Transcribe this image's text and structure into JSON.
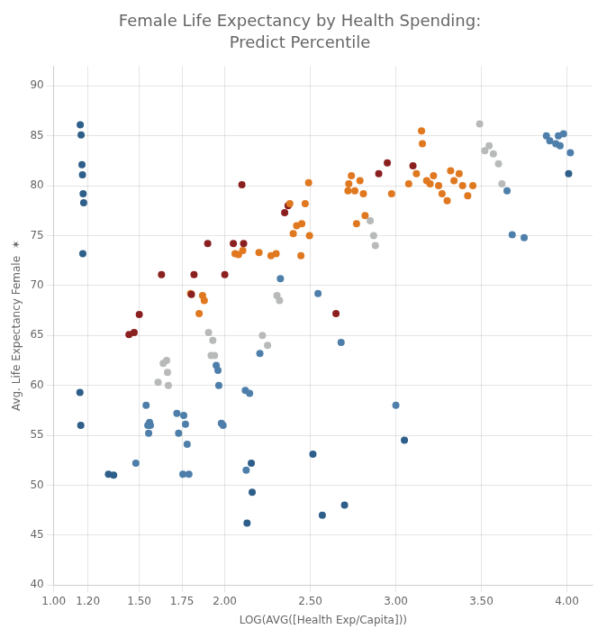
{
  "chart_data": {
    "type": "scatter",
    "title": "Female Life Expectancy by Health Spending:",
    "subtitle": "Predict Percentile",
    "xlabel": "LOG(AVG([Health Exp/Capita]))",
    "ylabel": "Avg. Life Expectancy Female  ✶",
    "xlim": [
      1.0,
      4.15
    ],
    "ylim": [
      40,
      92
    ],
    "xticks": [
      {
        "value": 1,
        "label": "1.00"
      },
      {
        "value": 1.2,
        "label": "1.20"
      },
      {
        "value": 1.5,
        "label": "1.50"
      },
      {
        "value": 1.75,
        "label": "1.75"
      },
      {
        "value": 2,
        "label": "2.00"
      },
      {
        "value": 2.5,
        "label": "2.50"
      },
      {
        "value": 3,
        "label": "3.00"
      },
      {
        "value": 3.5,
        "label": "3.50"
      },
      {
        "value": 4,
        "label": "4.00"
      }
    ],
    "yticks": [
      40,
      45,
      50,
      55,
      60,
      65,
      70,
      75,
      80,
      85,
      90
    ],
    "grid": true,
    "x": [
      1.155,
      1.16,
      1.165,
      1.168,
      1.172,
      1.175,
      1.153,
      1.158,
      1.17,
      1.32,
      1.35,
      1.44,
      1.47,
      1.5,
      1.48,
      1.54,
      1.55,
      1.555,
      1.56,
      1.565,
      1.63,
      1.61,
      1.64,
      1.66,
      1.665,
      1.67,
      1.72,
      1.73,
      1.755,
      1.76,
      1.77,
      1.78,
      1.79,
      1.8,
      1.805,
      1.82,
      1.85,
      1.87,
      1.88,
      1.9,
      1.905,
      1.92,
      1.93,
      1.94,
      1.95,
      1.96,
      1.965,
      1.98,
      1.99,
      2.0,
      2.05,
      2.06,
      2.08,
      2.1,
      2.105,
      2.11,
      2.12,
      2.125,
      2.13,
      2.145,
      2.155,
      2.16,
      2.2,
      2.205,
      2.22,
      2.25,
      2.27,
      2.3,
      2.305,
      2.32,
      2.325,
      2.35,
      2.37,
      2.38,
      2.4,
      2.42,
      2.445,
      2.45,
      2.47,
      2.49,
      2.495,
      2.515,
      2.545,
      2.57,
      2.65,
      2.68,
      2.7,
      2.72,
      2.725,
      2.74,
      2.76,
      2.77,
      2.79,
      2.81,
      2.82,
      2.85,
      2.87,
      2.88,
      2.9,
      2.95,
      2.975,
      3.0,
      3.05,
      3.075,
      3.1,
      3.12,
      3.15,
      3.155,
      3.18,
      3.2,
      3.22,
      3.25,
      3.27,
      3.3,
      3.32,
      3.34,
      3.37,
      3.39,
      3.42,
      3.45,
      3.49,
      3.52,
      3.545,
      3.57,
      3.6,
      3.62,
      3.65,
      3.68,
      3.75,
      3.88,
      3.9,
      3.935,
      3.95,
      3.96,
      3.98,
      4.01,
      4.02
    ],
    "values": [
      86.1,
      85.1,
      82.1,
      81.1,
      79.2,
      78.3,
      59.3,
      56.0,
      73.2,
      51.1,
      51.0,
      65.1,
      65.3,
      67.1,
      52.2,
      58.0,
      56.0,
      55.2,
      56.3,
      56.0,
      71.1,
      60.3,
      62.2,
      62.5,
      61.3,
      60.0,
      57.2,
      55.2,
      51.1,
      57.0,
      56.1,
      54.1,
      51.1,
      69.2,
      69.1,
      71.1,
      67.2,
      69.0,
      68.5,
      74.2,
      65.3,
      63.0,
      64.5,
      63.0,
      62.0,
      61.5,
      60.0,
      56.2,
      56.0,
      71.1,
      74.2,
      73.2,
      73.1,
      80.1,
      73.5,
      74.2,
      59.5,
      51.5,
      46.2,
      59.2,
      52.2,
      49.3,
      73.3,
      63.2,
      65.0,
      64.0,
      73.0,
      73.2,
      69.0,
      68.5,
      70.7,
      77.3,
      78.0,
      78.2,
      75.2,
      76.0,
      73.0,
      76.2,
      78.2,
      80.3,
      75.0,
      53.1,
      69.2,
      47.0,
      67.2,
      64.3,
      48.0,
      79.5,
      80.2,
      81.0,
      79.5,
      76.2,
      80.5,
      79.2,
      77.0,
      76.5,
      75.0,
      74.0,
      81.2,
      82.3,
      79.2,
      58.0,
      54.5,
      80.2,
      82.0,
      81.2,
      85.5,
      84.2,
      80.5,
      80.2,
      81.0,
      80.0,
      79.2,
      78.5,
      81.5,
      80.5,
      81.2,
      80.0,
      79.0,
      80.0,
      86.2,
      83.5,
      84.0,
      83.2,
      82.2,
      80.2,
      79.5,
      75.1,
      74.8,
      85.0,
      84.5,
      84.2,
      85.0,
      84.0,
      85.2,
      81.2,
      83.3
    ],
    "colors": [
      "#2e5f8a",
      "#2e5f8a",
      "#2e5f8a",
      "#2e5f8a",
      "#2e5f8a",
      "#2e5f8a",
      "#2e5f8a",
      "#2e5f8a",
      "#2e5f8a",
      "#2e5f8a",
      "#2e5f8a",
      "#8b2020",
      "#8b2020",
      "#8b2020",
      "#4e7faa",
      "#4e7faa",
      "#4e7faa",
      "#4e7faa",
      "#4e7faa",
      "#4e7faa",
      "#8b2020",
      "#b8baba",
      "#b8baba",
      "#b8baba",
      "#b8baba",
      "#b8baba",
      "#4e7faa",
      "#4e7faa",
      "#4e7faa",
      "#4e7faa",
      "#4e7faa",
      "#4e7faa",
      "#4e7faa",
      "#e07820",
      "#8b2020",
      "#8b2020",
      "#e07820",
      "#e07820",
      "#e07820",
      "#8b2020",
      "#b8baba",
      "#b8baba",
      "#b8baba",
      "#b8baba",
      "#4e7faa",
      "#4e7faa",
      "#4e7faa",
      "#4e7faa",
      "#4e7faa",
      "#8b2020",
      "#8b2020",
      "#e07820",
      "#e07820",
      "#8b2020",
      "#e07820",
      "#8b2020",
      "#4e7faa",
      "#4e7faa",
      "#2e5f8a",
      "#4e7faa",
      "#2e5f8a",
      "#2e5f8a",
      "#e07820",
      "#4e7faa",
      "#b8baba",
      "#b8baba",
      "#e07820",
      "#e07820",
      "#b8baba",
      "#b8baba",
      "#4e7faa",
      "#8b2020",
      "#8b2020",
      "#e07820",
      "#e07820",
      "#e07820",
      "#e07820",
      "#e07820",
      "#e07820",
      "#e07820",
      "#e07820",
      "#2e5f8a",
      "#4e7faa",
      "#2e5f8a",
      "#8b2020",
      "#4e7faa",
      "#2e5f8a",
      "#e07820",
      "#e07820",
      "#e07820",
      "#e07820",
      "#e07820",
      "#e07820",
      "#e07820",
      "#e07820",
      "#b8baba",
      "#b8baba",
      "#b8baba",
      "#8b2020",
      "#8b2020",
      "#e07820",
      "#4e7faa",
      "#2e5f8a",
      "#e07820",
      "#8b2020",
      "#e07820",
      "#e07820",
      "#e07820",
      "#e07820",
      "#e07820",
      "#e07820",
      "#e07820",
      "#e07820",
      "#e07820",
      "#e07820",
      "#e07820",
      "#e07820",
      "#e07820",
      "#e07820",
      "#e07820",
      "#b8baba",
      "#b8baba",
      "#b8baba",
      "#b8baba",
      "#b8baba",
      "#b8baba",
      "#4e7faa",
      "#4e7faa",
      "#4e7faa",
      "#4e7faa",
      "#4e7faa",
      "#4e7faa",
      "#4e7faa",
      "#4e7faa",
      "#4e7faa",
      "#2e5f8a",
      "#4e7faa"
    ]
  }
}
